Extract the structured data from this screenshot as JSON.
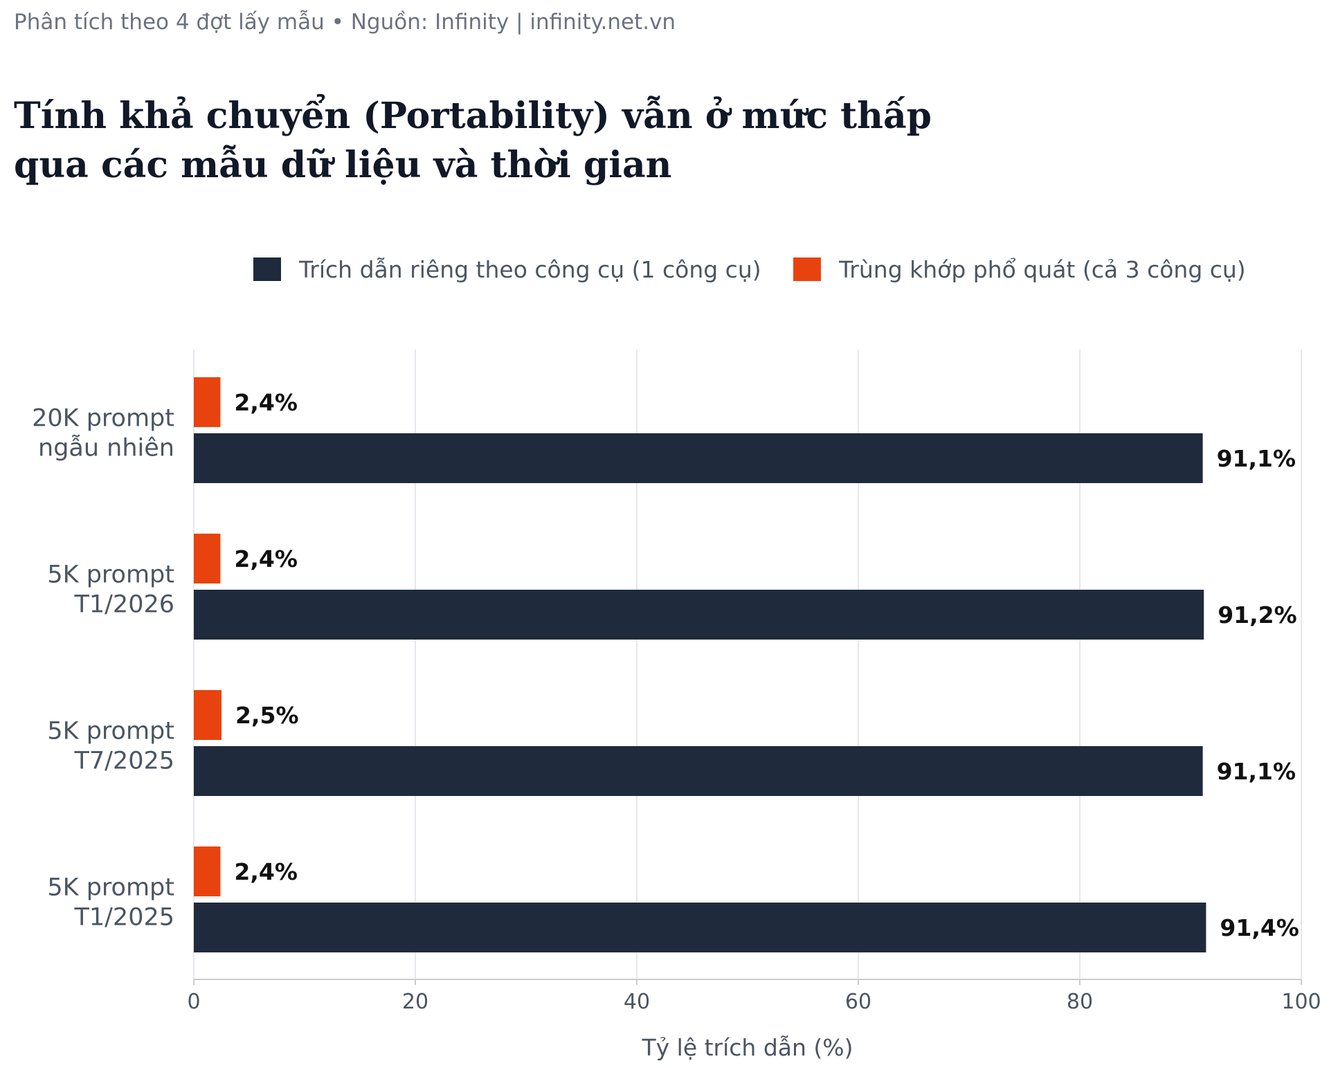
{
  "header": {
    "subtitle": "Phân tích theo 4 đợt lấy mẫu  •  Nguồn: Infinity | infinity.net.vn",
    "title_line1": "Tính khả chuyển (Portability) vẫn ở mức thấp",
    "title_line2": "qua các mẫu dữ liệu và thời gian"
  },
  "chart_data": {
    "type": "bar",
    "orientation": "horizontal",
    "categories": [
      [
        "20K prompt",
        "ngẫu nhiên"
      ],
      [
        "5K prompt",
        "T1/2026"
      ],
      [
        "5K prompt",
        "T7/2025"
      ],
      [
        "5K prompt",
        "T1/2025"
      ]
    ],
    "series": [
      {
        "name": "Trích dẫn riêng theo công cụ (1 công cụ)",
        "color": "#1f2a3c",
        "values": [
          91.1,
          91.2,
          91.1,
          91.4
        ],
        "labels": [
          "91,1%",
          "91,2%",
          "91,1%",
          "91,4%"
        ]
      },
      {
        "name": "Trùng khớp phổ quát (cả 3 công cụ)",
        "color": "#e8430f",
        "values": [
          2.4,
          2.4,
          2.5,
          2.4
        ],
        "labels": [
          "2,4%",
          "2,4%",
          "2,5%",
          "2,4%"
        ]
      }
    ],
    "xlabel": "Tỷ lệ trích dẫn (%)",
    "xlim": [
      0,
      100
    ],
    "xticks": [
      "0",
      "20",
      "40",
      "60",
      "80",
      "100"
    ],
    "grid": true,
    "legend_position": "top"
  }
}
